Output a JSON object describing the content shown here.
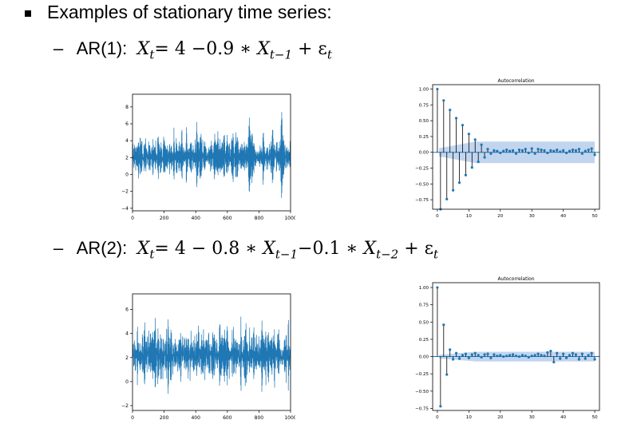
{
  "slide": {
    "heading": "Examples of stationary time series:",
    "dash": "–",
    "ar1": {
      "label": "AR(1):",
      "x": "X",
      "t": "t",
      "eq": "= 4 −0.9 ∗ ",
      "x2": "X",
      "t1": "t−1",
      "plus": " + ε",
      "t3": "t"
    },
    "ar2": {
      "label": "AR(2):",
      "x": "X",
      "t": "t",
      "eq": "= 4 − 0.8 ∗ ",
      "x2": "X",
      "t1": "t−1",
      "mid": "−0.1 ∗ ",
      "x3": "X",
      "t2": "t−2",
      "plus": " + ε",
      "t3": "t"
    }
  },
  "colors": {
    "line": "#1f77b4",
    "band": "#aec7e8",
    "frame": "#000000",
    "text": "#000000"
  },
  "chart_data": [
    {
      "type": "line",
      "title": "",
      "x_range": [
        0,
        1000
      ],
      "xticks": [
        0,
        200,
        400,
        600,
        800,
        1000
      ],
      "ylim": [
        -4.3,
        9.5
      ],
      "yticks": [
        -4,
        -2,
        0,
        2,
        4,
        6,
        8
      ],
      "series": [
        {
          "n": 1000,
          "mean": 2.1,
          "std_est": 1.3,
          "min_est": -3.5,
          "max_est": 8.8
        }
      ]
    },
    {
      "type": "acf",
      "title": "Autocorrelation",
      "xlim": [
        -1.5,
        51.5
      ],
      "xticks": [
        0,
        10,
        20,
        30,
        40,
        50
      ],
      "ylim": [
        -0.9,
        1.07
      ],
      "yticks": [
        -0.75,
        -0.5,
        -0.25,
        0.0,
        0.25,
        0.5,
        0.75,
        1.0
      ],
      "confidence_band_est": 0.17,
      "values": [
        1.0,
        -0.9,
        0.82,
        -0.74,
        0.67,
        -0.6,
        0.54,
        -0.48,
        0.43,
        -0.36,
        0.29,
        -0.24,
        0.2,
        -0.15,
        0.12,
        -0.08,
        0.05,
        -0.02,
        0.03,
        0.02,
        -0.01,
        0.02,
        0.04,
        0.02,
        0.03,
        -0.02,
        0.04,
        0.03,
        0.05,
        -0.01,
        0.06,
        -0.02,
        0.05,
        0.04,
        0.03,
        -0.01,
        0.03,
        0.02,
        0.04,
        0.01,
        0.03,
        -0.01,
        0.02,
        0.04,
        0.03,
        0.05,
        -0.02,
        0.02,
        0.04,
        0.06,
        -0.04
      ]
    },
    {
      "type": "line",
      "title": "",
      "x_range": [
        0,
        1000
      ],
      "xticks": [
        0,
        200,
        400,
        600,
        800,
        1000
      ],
      "ylim": [
        -2.4,
        7.3
      ],
      "yticks": [
        -2,
        0,
        2,
        4,
        6
      ],
      "series": [
        {
          "n": 1000,
          "mean": 2.2,
          "std_est": 1.1,
          "min_est": -2.0,
          "max_est": 6.9
        }
      ]
    },
    {
      "type": "acf",
      "title": "Autocorrelation",
      "xlim": [
        -1.5,
        51.5
      ],
      "xticks": [
        0,
        10,
        20,
        30,
        40,
        50
      ],
      "ylim": [
        -0.78,
        1.07
      ],
      "yticks": [
        -0.75,
        -0.5,
        -0.25,
        0.0,
        0.25,
        0.5,
        0.75,
        1.0
      ],
      "confidence_band_est": 0.07,
      "values": [
        1.0,
        -0.72,
        0.46,
        -0.26,
        0.1,
        -0.04,
        0.05,
        -0.03,
        0.02,
        0.04,
        -0.02,
        0.03,
        0.05,
        0.02,
        -0.01,
        0.03,
        0.04,
        -0.02,
        0.03,
        0.01,
        0.02,
        0.0,
        0.01,
        0.02,
        0.03,
        0.01,
        0.0,
        0.02,
        0.01,
        -0.01,
        0.01,
        0.02,
        0.04,
        0.02,
        0.01,
        0.06,
        0.08,
        -0.08,
        0.05,
        -0.03,
        0.04,
        -0.02,
        0.02,
        0.05,
        0.03,
        -0.04,
        0.04,
        -0.03,
        0.02,
        0.05,
        -0.04
      ]
    }
  ]
}
